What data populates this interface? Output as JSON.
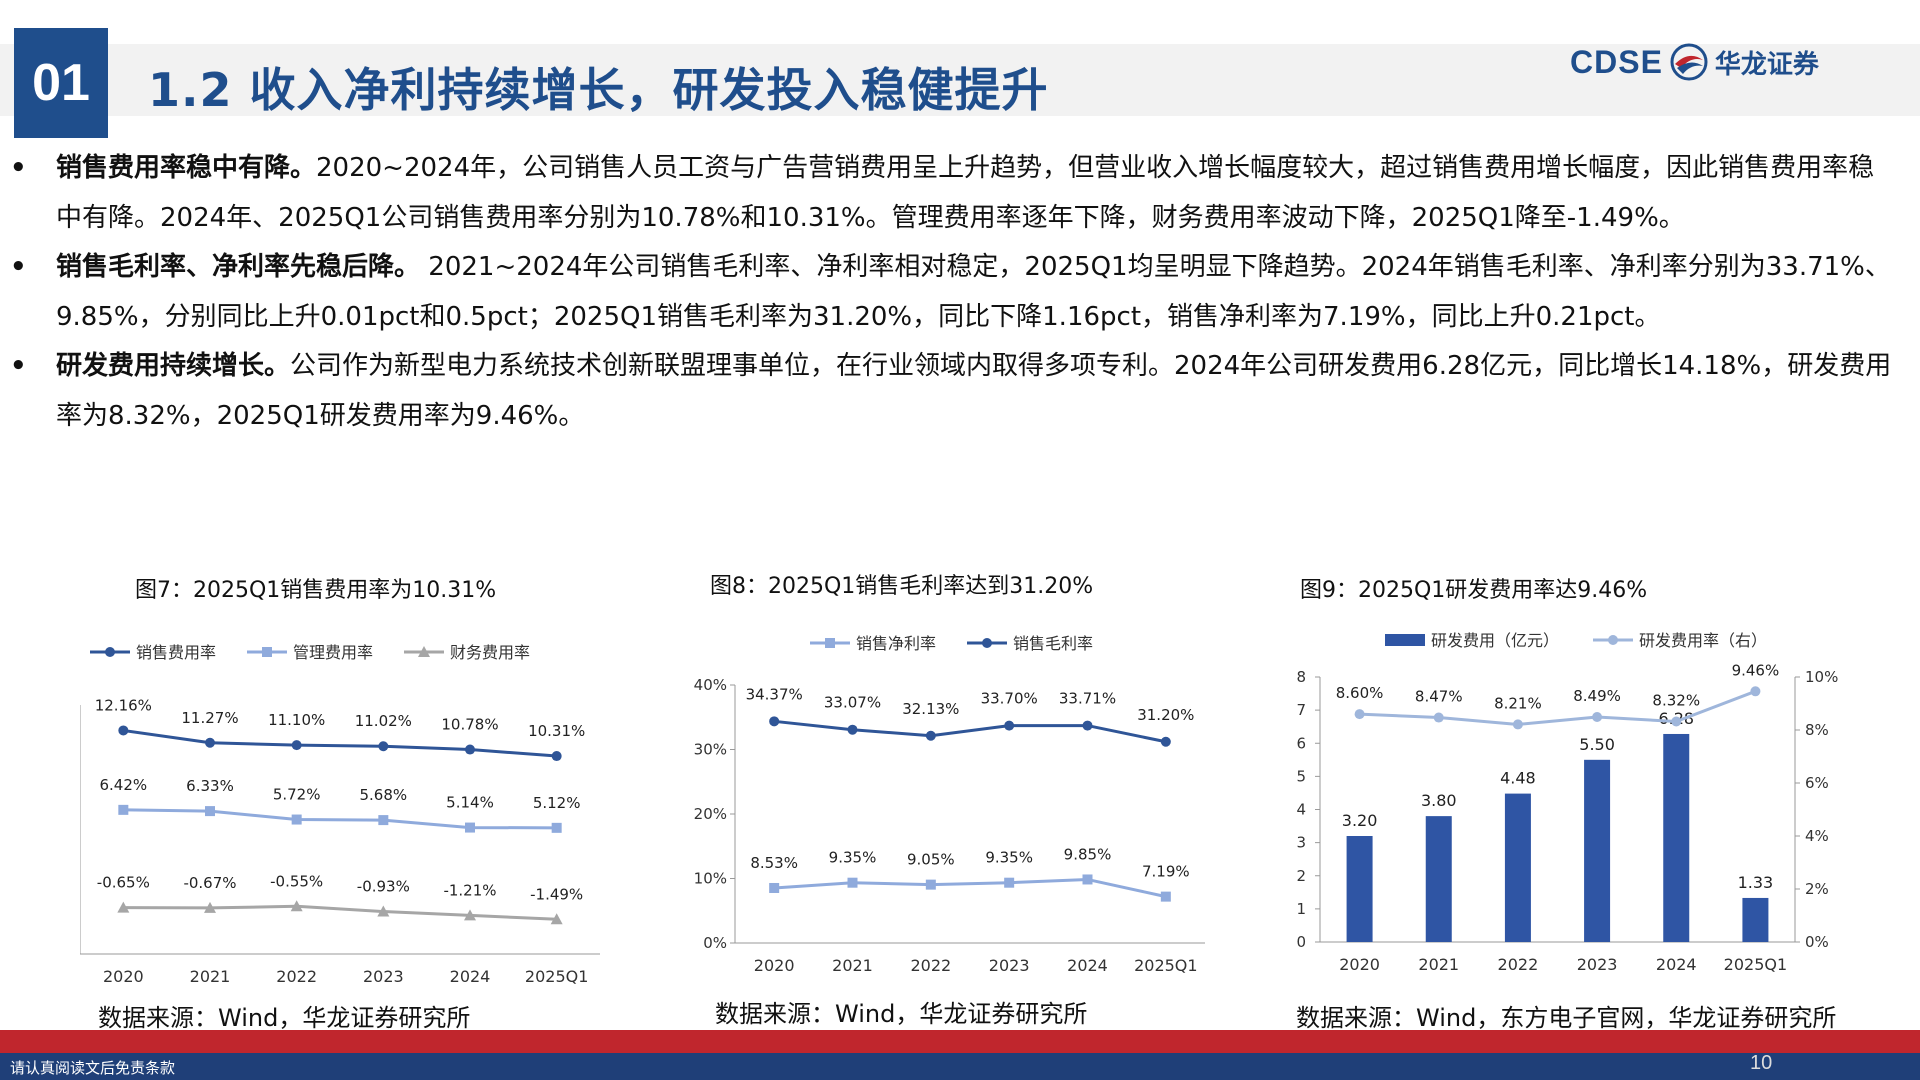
{
  "header": {
    "section_number": "01",
    "title": "1.2 收入净利持续增长，研发投入稳健提升",
    "logo_en": "CDSE",
    "logo_cn": "华龙证券"
  },
  "bullets": [
    {
      "bold": "销售费用率稳中有降。",
      "text": "2020~2024年，公司销售人员工资与广告营销费用呈上升趋势，但营业收入增长幅度较大，超过销售费用增长幅度，因此销售费用率稳中有降。2024年、2025Q1公司销售费用率分别为10.78%和10.31%。管理费用率逐年下降，财务费用率波动下降，2025Q1降至-1.49%。"
    },
    {
      "bold": "销售毛利率、净利率先稳后降。",
      "text": " 2021~2024年公司销售毛利率、净利率相对稳定，2025Q1均呈明显下降趋势。2024年销售毛利率、净利率分别为33.71%、9.85%，分别同比上升0.01pct和0.5pct；2025Q1销售毛利率为31.20%，同比下降1.16pct，销售净利率为7.19%，同比上升0.21pct。"
    },
    {
      "bold": "研发费用持续增长。",
      "text": "公司作为新型电力系统技术创新联盟理事单位，在行业领域内取得多项专利。2024年公司研发费用6.28亿元，同比增长14.18%，研发费用率为8.32%，2025Q1研发费用率为9.46%。"
    }
  ],
  "bullet_symbol": "•",
  "figures": [
    {
      "title": "图7：2025Q1销售费用率为10.31%",
      "source": "数据来源：Wind，华龙证券研究所"
    },
    {
      "title": "图8：2025Q1销售毛利率达到31.20%",
      "source": "数据来源：Wind，华龙证券研究所"
    },
    {
      "title": "图9：2025Q1研发费用率达9.46%",
      "source": "数据来源：Wind，东方电子官网，华龙证券研究所"
    }
  ],
  "footer": {
    "disclaimer": "请认真阅读文后免责条款",
    "page": "10"
  },
  "colors": {
    "brand_blue": "#1f4e8c",
    "series_dark": "#2f5597",
    "series_light": "#8faadc",
    "series_gray": "#a6a6a6",
    "bar": "#2f55a4",
    "footer_red": "#c0262d"
  },
  "chart_data": [
    {
      "type": "line",
      "categories": [
        "2020",
        "2021",
        "2022",
        "2023",
        "2024",
        "2025Q1"
      ],
      "series": [
        {
          "name": "销售费用率",
          "values": [
            12.16,
            11.27,
            11.1,
            11.02,
            10.78,
            10.31
          ],
          "labels": [
            "12.16%",
            "11.27%",
            "11.10%",
            "11.02%",
            "10.78%",
            "10.31%"
          ],
          "marker": "circle",
          "color": "#2f5597"
        },
        {
          "name": "管理费用率",
          "values": [
            6.42,
            6.33,
            5.72,
            5.68,
            5.14,
            5.12
          ],
          "labels": [
            "6.42%",
            "6.33%",
            "5.72%",
            "5.68%",
            "5.14%",
            "5.12%"
          ],
          "marker": "square",
          "color": "#8faadc"
        },
        {
          "name": "财务费用率",
          "values": [
            -0.65,
            -0.67,
            -0.55,
            -0.93,
            -1.21,
            -1.49
          ],
          "labels": [
            "-0.65%",
            "-0.67%",
            "-0.55%",
            "-0.93%",
            "-1.21%",
            "-1.49%"
          ],
          "marker": "triangle",
          "color": "#a6a6a6"
        }
      ],
      "ylim": [
        -4,
        14
      ],
      "yticks": [
        "-4%",
        "-2%",
        "0%",
        "2%",
        "4%",
        "6%",
        "8%",
        "10%",
        "12%",
        "14%"
      ],
      "legend": "top"
    },
    {
      "type": "line",
      "categories": [
        "2020",
        "2021",
        "2022",
        "2023",
        "2024",
        "2025Q1"
      ],
      "series": [
        {
          "name": "销售净利率",
          "values": [
            8.53,
            9.35,
            9.05,
            9.35,
            9.85,
            7.19
          ],
          "labels": [
            "8.53%",
            "9.35%",
            "9.05%",
            "9.35%",
            "9.85%",
            "7.19%"
          ],
          "marker": "square",
          "color": "#8faadc"
        },
        {
          "name": "销售毛利率",
          "values": [
            34.37,
            33.07,
            32.13,
            33.7,
            33.71,
            31.2
          ],
          "labels": [
            "34.37%",
            "33.07%",
            "32.13%",
            "33.70%",
            "33.71%",
            "31.20%"
          ],
          "marker": "circle",
          "color": "#2f5597"
        }
      ],
      "ylim": [
        0,
        40
      ],
      "yticks": [
        "0%",
        "10%",
        "20%",
        "30%",
        "40%"
      ],
      "legend": "top"
    },
    {
      "type": "bar",
      "categories": [
        "2020",
        "2021",
        "2022",
        "2023",
        "2024",
        "2025Q1"
      ],
      "series": [
        {
          "name": "研发费用（亿元）",
          "values": [
            3.2,
            3.8,
            4.48,
            5.5,
            6.28,
            1.33
          ],
          "labels": [
            "3.20",
            "3.80",
            "4.48",
            "5.50",
            "6.28",
            "1.33"
          ],
          "color": "#2f55a4",
          "axis": "left"
        },
        {
          "name": "研发费用率（右）",
          "values": [
            8.6,
            8.47,
            8.21,
            8.49,
            8.32,
            9.46
          ],
          "labels": [
            "8.60%",
            "8.47%",
            "8.21%",
            "8.49%",
            "8.32%",
            "9.46%"
          ],
          "type": "line",
          "color": "#9fb6db",
          "axis": "right"
        }
      ],
      "ylim": [
        0,
        8
      ],
      "yticks": [
        "0",
        "1",
        "2",
        "3",
        "4",
        "5",
        "6",
        "7",
        "8"
      ],
      "y2lim": [
        0,
        10
      ],
      "y2ticks": [
        "0%",
        "2%",
        "4%",
        "6%",
        "8%",
        "10%"
      ],
      "legend": "top"
    }
  ]
}
